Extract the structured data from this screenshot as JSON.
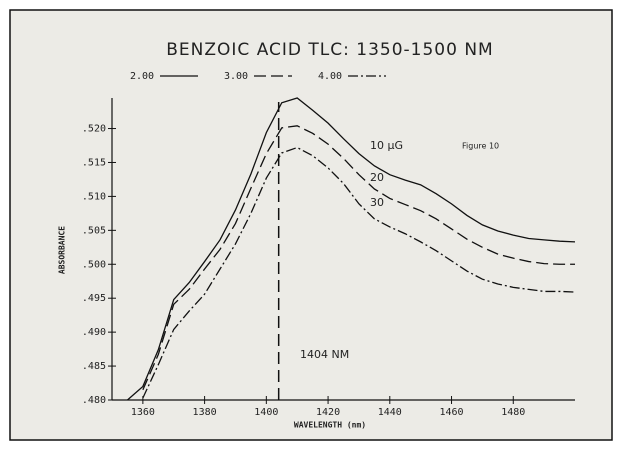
{
  "chart_data": {
    "type": "line",
    "title": "BENZOIC ACID TLC: 1350-1500 NM",
    "xlabel": "WAVELENGTH (nm)",
    "ylabel": "ABSORBANCE",
    "x": [
      1355,
      1360,
      1365,
      1370,
      1375,
      1380,
      1385,
      1390,
      1395,
      1400,
      1405,
      1410,
      1415,
      1420,
      1425,
      1430,
      1435,
      1440,
      1445,
      1450,
      1455,
      1460,
      1465,
      1470,
      1475,
      1480,
      1485,
      1490,
      1495,
      1500
    ],
    "series": [
      {
        "name": "2.00",
        "color": "#111",
        "dash": "none",
        "values": [
          0.48,
          0.482,
          0.4874,
          0.4948,
          0.4973,
          0.5004,
          0.5036,
          0.508,
          0.5133,
          0.5194,
          0.5238,
          0.5245,
          0.5227,
          0.5208,
          0.5185,
          0.5163,
          0.5145,
          0.5132,
          0.5124,
          0.5117,
          0.5104,
          0.5089,
          0.5072,
          0.5058,
          0.5049,
          0.5043,
          0.5038,
          0.5036,
          0.5034,
          0.5033
        ]
      },
      {
        "name": "3.00",
        "color": "#111",
        "dash": "12 5",
        "values": [
          null,
          0.4815,
          0.4867,
          0.4941,
          0.4963,
          0.4993,
          0.5022,
          0.506,
          0.5112,
          0.5163,
          0.5201,
          0.5204,
          0.5193,
          0.5177,
          0.5156,
          0.5132,
          0.5111,
          0.5097,
          0.5088,
          0.5079,
          0.5067,
          0.5052,
          0.5037,
          0.5025,
          0.5015,
          0.5009,
          0.5004,
          0.5001,
          0.5,
          0.5
        ]
      },
      {
        "name": "4.00",
        "color": "#111",
        "dash": "10 3 2 3",
        "values": [
          null,
          0.4803,
          0.4852,
          0.4904,
          0.4931,
          0.4956,
          0.4993,
          0.503,
          0.5075,
          0.5127,
          0.5164,
          0.5172,
          0.516,
          0.5142,
          0.5119,
          0.5089,
          0.5067,
          0.5055,
          0.5045,
          0.5033,
          0.502,
          0.5005,
          0.499,
          0.4978,
          0.4971,
          0.4966,
          0.4963,
          0.496,
          0.496,
          0.4959
        ]
      }
    ],
    "xlim": [
      1350,
      1500
    ],
    "ylim": [
      0.48,
      0.5245
    ],
    "xticks": [
      1360,
      1380,
      1400,
      1420,
      1440,
      1460,
      1480
    ],
    "yticks": [
      {
        "value": 0.48,
        "label": ".480"
      },
      {
        "value": 0.485,
        "label": ".485"
      },
      {
        "value": 0.49,
        "label": ".490"
      },
      {
        "value": 0.495,
        "label": ".495"
      },
      {
        "value": 0.5,
        "label": ".500"
      },
      {
        "value": 0.505,
        "label": ".505"
      },
      {
        "value": 0.51,
        "label": ".510"
      },
      {
        "value": 0.515,
        "label": ".515"
      },
      {
        "value": 0.52,
        "label": ".520"
      }
    ],
    "vline": 1404,
    "annotations": [
      "10 µG",
      "20",
      "30",
      "1404 NM",
      "Figure 10"
    ]
  }
}
